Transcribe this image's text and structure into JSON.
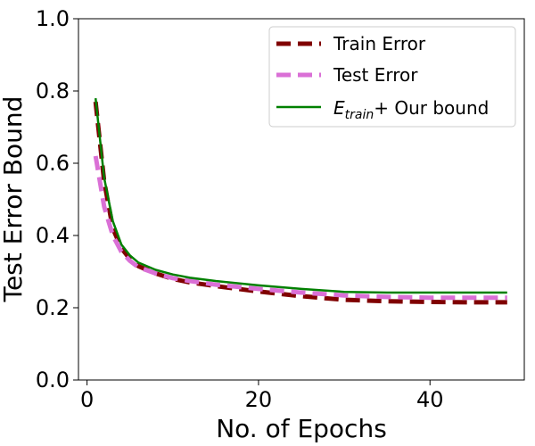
{
  "chart_data": {
    "type": "line",
    "title": "",
    "xlabel": "No. of Epochs",
    "ylabel": "Test Error Bound",
    "xlim": [
      -1,
      51
    ],
    "ylim": [
      0.0,
      1.0
    ],
    "xticks": [
      0,
      20,
      40
    ],
    "yticks": [
      0.0,
      0.2,
      0.4,
      0.6,
      0.8,
      1.0
    ],
    "xtick_labels": [
      "0",
      "20",
      "40"
    ],
    "ytick_labels": [
      "0.0",
      "0.2",
      "0.4",
      "0.6",
      "0.8",
      "1.0"
    ],
    "grid": false,
    "legend_position": "top-right",
    "x": [
      1,
      2,
      3,
      4,
      5,
      6,
      8,
      10,
      12,
      15,
      20,
      25,
      30,
      35,
      40,
      45,
      49
    ],
    "series": [
      {
        "name": "Train Error",
        "color": "#800000",
        "style": "dashed",
        "values": [
          0.77,
          0.55,
          0.42,
          0.365,
          0.335,
          0.315,
          0.295,
          0.28,
          0.27,
          0.26,
          0.245,
          0.232,
          0.222,
          0.218,
          0.216,
          0.215,
          0.215
        ]
      },
      {
        "name": "Test Error",
        "color": "#da70d6",
        "style": "dashed",
        "values": [
          0.62,
          0.48,
          0.4,
          0.355,
          0.33,
          0.312,
          0.295,
          0.282,
          0.274,
          0.264,
          0.252,
          0.242,
          0.234,
          0.23,
          0.228,
          0.228,
          0.228
        ]
      },
      {
        "name": "E_train+ Our bound",
        "legend_main": "E",
        "legend_sub": "train",
        "legend_rest": "+ Our bound",
        "color": "#008000",
        "style": "solid",
        "values": [
          0.78,
          0.56,
          0.44,
          0.375,
          0.345,
          0.325,
          0.305,
          0.292,
          0.283,
          0.274,
          0.262,
          0.252,
          0.244,
          0.242,
          0.242,
          0.242,
          0.242
        ]
      }
    ]
  }
}
